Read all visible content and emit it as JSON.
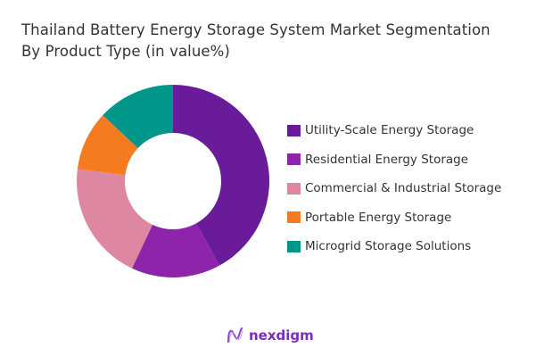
{
  "title_line1": "Thailand Battery Energy Storage System Market Segmentation",
  "title_line2": "By Product Type (in value%)",
  "chart_data": {
    "type": "pie",
    "variant": "donut",
    "title": "Thailand Battery Energy Storage System Market Segmentation By Product Type (in value%)",
    "legend_position": "right",
    "categories": [
      "Utility-Scale Energy Storage",
      "Residential Energy Storage",
      "Commercial & Industrial Storage",
      "Portable Energy Storage",
      "Microgrid Storage Solutions"
    ],
    "values": [
      42,
      15,
      20,
      10,
      13
    ],
    "colors": [
      "#6a1b9a",
      "#8e24aa",
      "#de87a0",
      "#f47b20",
      "#00968a"
    ]
  },
  "logo": {
    "text": "nexdigm"
  }
}
